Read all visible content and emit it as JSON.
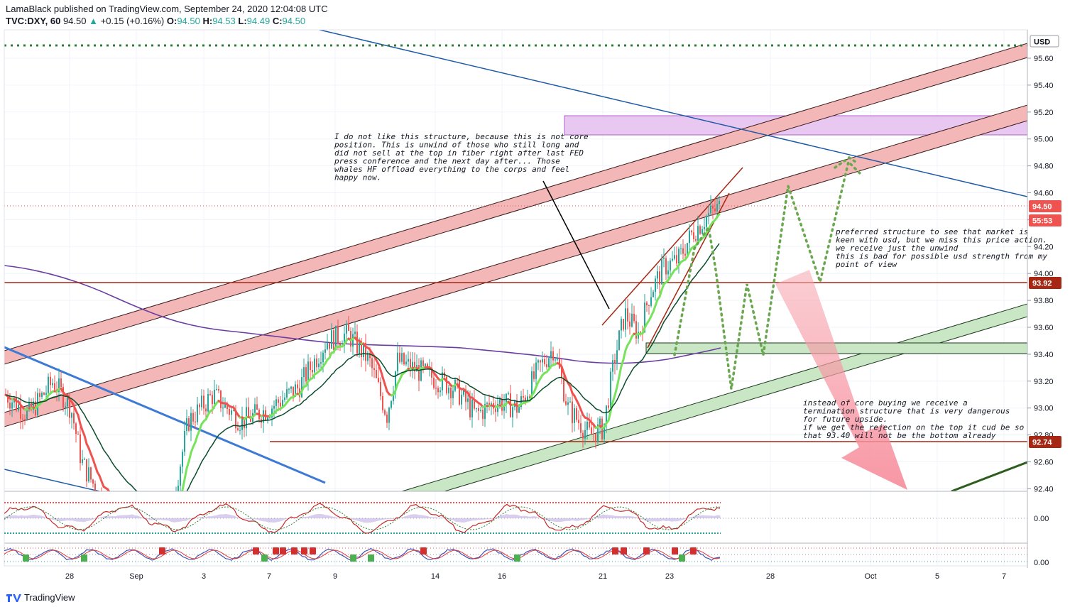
{
  "header": {
    "publisher_line": "LamaBlack published on TradingView.com, September 24, 2020 12:04:08 UTC",
    "symbol": "TVC:DXY, 60",
    "last": "94.50",
    "change": "+0.15 (+0.16%)",
    "o_label": "O:",
    "o": "94.50",
    "h_label": "H:",
    "h": "94.53",
    "l_label": "L:",
    "l": "94.49",
    "c_label": "C:",
    "c": "94.50"
  },
  "footer": {
    "brand": "TradingView"
  },
  "colors": {
    "up": "#26a69a",
    "down": "#ef5350",
    "red_band": "#f4b7b7",
    "green_band": "#c9e6c5",
    "purple_zone": "#e8c8f0",
    "hline": "#a52714",
    "blue_line": "#2962ff"
  },
  "chart_data": {
    "type": "candlestick",
    "symbol": "TVC:DXY",
    "interval": "60",
    "currency": "USD",
    "y_ticks": [
      "95.60",
      "95.40",
      "95.20",
      "95.00",
      "94.80",
      "94.60",
      "94.40",
      "94.20",
      "94.00",
      "93.80",
      "93.60",
      "93.40",
      "93.20",
      "93.00",
      "92.80",
      "92.60",
      "92.40"
    ],
    "y_range": [
      92.33,
      95.78
    ],
    "x_ticks": [
      "28",
      "Sep",
      "3",
      "7",
      "9",
      "14",
      "16",
      "21",
      "23",
      "28",
      "Oct",
      "5",
      "7"
    ],
    "price_labels": [
      {
        "text": "USD"
      },
      {
        "text": "94.50"
      },
      {
        "text": "55:53"
      },
      {
        "text": "93.92"
      },
      {
        "text": "92.74"
      }
    ],
    "levels": [
      93.92,
      92.74,
      95.7
    ],
    "osc1_tick": "0.00",
    "osc2_tick": "0.00",
    "annotations": [
      {
        "id": "note1",
        "lines": [
          "I do not like this structure, because this is not core",
          "position. This is unwind of those who still long and",
          "did not sell at the top in fiber right after last FED",
          "press conference and the next day after... Those",
          "whales HF offload everything to the corps and feel",
          "happy now."
        ]
      },
      {
        "id": "note2",
        "lines": [
          "preferred structure to see that market is",
          "keen with usd, but we miss this price action.",
          "we receive just the unwind",
          "this is bad for possible usd strength from my",
          "point of view"
        ]
      },
      {
        "id": "note3",
        "lines": [
          "instead of core buying we receive a",
          "termination structure that is very dangerous",
          "for future upside.",
          "if we get the rejection on the top it cud be so",
          "that 93.40 will not be the bottom already"
        ]
      }
    ]
  }
}
